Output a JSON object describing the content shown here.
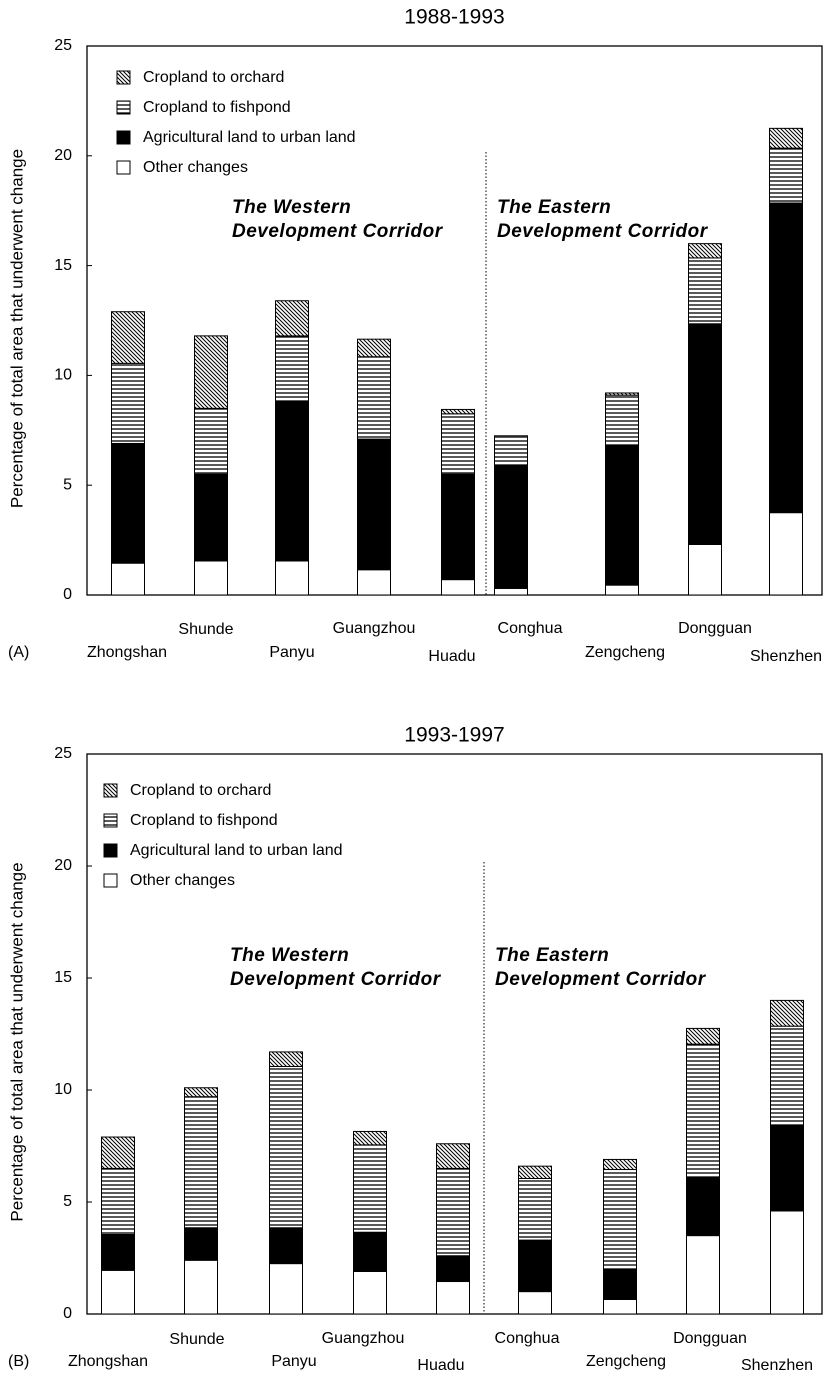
{
  "chart_data": [
    {
      "type": "bar",
      "stacked": true,
      "title": "1988-1993",
      "panel_label": "(A)",
      "ylabel": "Percentage of total area that underwent change",
      "categories": [
        "Zhongshan",
        "Shunde",
        "Panyu",
        "Guangzhou",
        "Huadu",
        "Conghua",
        "Zengcheng",
        "Dongguan",
        "Shenzhen"
      ],
      "series": [
        {
          "name": "Other changes",
          "color": "#ffffff",
          "pattern": "none",
          "values": [
            1.45,
            1.55,
            1.55,
            1.15,
            0.7,
            0.3,
            0.45,
            2.3,
            3.75
          ]
        },
        {
          "name": "Agricultural land to urban land",
          "color": "#000000",
          "pattern": "solid",
          "values": [
            5.45,
            3.95,
            7.25,
            5.95,
            4.8,
            5.6,
            6.35,
            10.05,
            14.1
          ]
        },
        {
          "name": "Cropland to fishpond",
          "color": "#000000",
          "pattern": "horizontal",
          "values": [
            3.65,
            3.0,
            3.0,
            3.75,
            2.75,
            1.35,
            2.3,
            3.0,
            2.5
          ]
        },
        {
          "name": "Cropland to orchard",
          "color": "#000000",
          "pattern": "diagonal",
          "values": [
            2.35,
            3.3,
            1.6,
            0.8,
            0.2,
            0,
            0.1,
            0.65,
            0.9
          ]
        }
      ],
      "ylim": [
        0,
        25
      ],
      "yticks": [
        0,
        5,
        10,
        15,
        20,
        25
      ],
      "annotations": [
        [
          "The Western",
          "Development Corridor"
        ],
        [
          "The Eastern",
          "Development Corridor"
        ]
      ]
    },
    {
      "type": "bar",
      "stacked": true,
      "title": "1993-1997",
      "panel_label": "(B)",
      "ylabel": "Percentage of total area that underwent change",
      "categories": [
        "Zhongshan",
        "Shunde",
        "Panyu",
        "Guangzhou",
        "Huadu",
        "Conghua",
        "Zengcheng",
        "Dongguan",
        "Shenzhen"
      ],
      "series": [
        {
          "name": "Other changes",
          "color": "#ffffff",
          "pattern": "none",
          "values": [
            1.95,
            2.4,
            2.25,
            1.9,
            1.45,
            1.0,
            0.65,
            3.5,
            4.6
          ]
        },
        {
          "name": "Agricultural land to urban land",
          "color": "#000000",
          "pattern": "solid",
          "values": [
            1.6,
            1.45,
            1.6,
            1.75,
            1.15,
            2.3,
            1.35,
            2.6,
            3.8
          ]
        },
        {
          "name": "Cropland to fishpond",
          "color": "#000000",
          "pattern": "horizontal",
          "values": [
            2.95,
            5.85,
            7.2,
            3.9,
            3.9,
            2.75,
            4.45,
            5.95,
            4.45
          ]
        },
        {
          "name": "Cropland to orchard",
          "color": "#000000",
          "pattern": "diagonal",
          "values": [
            1.4,
            0.4,
            0.65,
            0.6,
            1.1,
            0.55,
            0.45,
            0.7,
            1.15
          ]
        }
      ],
      "ylim": [
        0,
        25
      ],
      "yticks": [
        0,
        5,
        10,
        15,
        20,
        25
      ],
      "annotations": [
        [
          "The Western",
          "Development Corridor"
        ],
        [
          "The Eastern",
          "Development Corridor"
        ]
      ]
    }
  ]
}
